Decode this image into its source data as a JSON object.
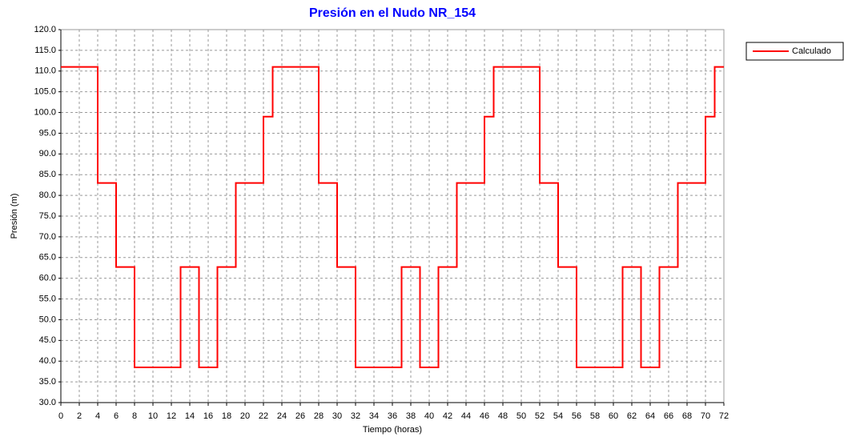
{
  "chart_data": {
    "type": "line",
    "title": "Presión en el Nudo NR_154",
    "xlabel": "Tiempo (horas)",
    "ylabel": "Presión (m)",
    "x": [
      0,
      4,
      4,
      6,
      6,
      8,
      8,
      13,
      13,
      15,
      15,
      17,
      17,
      19,
      19,
      22,
      22,
      23,
      23,
      28,
      28,
      30,
      30,
      32,
      32,
      37,
      37,
      39,
      39,
      41,
      41,
      43,
      43,
      46,
      46,
      47,
      47,
      52,
      52,
      54,
      54,
      56,
      56,
      61,
      61,
      63,
      63,
      65,
      65,
      67,
      67,
      70,
      70,
      71,
      71,
      72
    ],
    "series": [
      {
        "name": "Calculado",
        "color": "#ff0000",
        "values": [
          111,
          111,
          83,
          83,
          62.7,
          62.7,
          38.5,
          38.5,
          62.7,
          62.7,
          38.5,
          38.5,
          62.7,
          62.7,
          83,
          83,
          99,
          99,
          111,
          111,
          83,
          83,
          62.7,
          62.7,
          38.5,
          38.5,
          62.7,
          62.7,
          38.5,
          38.5,
          62.7,
          62.7,
          83,
          83,
          99,
          99,
          111,
          111,
          83,
          83,
          62.7,
          62.7,
          38.5,
          38.5,
          62.7,
          62.7,
          38.5,
          38.5,
          62.7,
          62.7,
          83,
          83,
          99,
          99,
          111,
          111
        ]
      }
    ],
    "xlim": [
      0,
      72
    ],
    "xticks": [
      0,
      2,
      4,
      6,
      8,
      10,
      12,
      14,
      16,
      18,
      20,
      22,
      24,
      26,
      28,
      30,
      32,
      34,
      36,
      38,
      40,
      42,
      44,
      46,
      48,
      50,
      52,
      54,
      56,
      58,
      60,
      62,
      64,
      66,
      68,
      70,
      72
    ],
    "ylim": [
      30,
      120
    ],
    "yticks": [
      {
        "value": 30,
        "label": "30.0"
      },
      {
        "value": 35,
        "label": "35.0"
      },
      {
        "value": 40,
        "label": "40.0"
      },
      {
        "value": 45,
        "label": "45.0"
      },
      {
        "value": 50,
        "label": "50.0"
      },
      {
        "value": 55,
        "label": "55.0"
      },
      {
        "value": 60,
        "label": "60.0"
      },
      {
        "value": 65,
        "label": "65.0"
      },
      {
        "value": 70,
        "label": "70.0"
      },
      {
        "value": 75,
        "label": "75.0"
      },
      {
        "value": 80,
        "label": "80.0"
      },
      {
        "value": 85,
        "label": "85.0"
      },
      {
        "value": 90,
        "label": "90.0"
      },
      {
        "value": 95,
        "label": "95.0"
      },
      {
        "value": 100,
        "label": "100.0"
      },
      {
        "value": 105,
        "label": "105.0"
      },
      {
        "value": 110,
        "label": "110.0"
      },
      {
        "value": 115,
        "label": "115.0"
      },
      {
        "value": 120,
        "label": "120.0"
      }
    ],
    "grid": true,
    "legend": "upper right"
  }
}
